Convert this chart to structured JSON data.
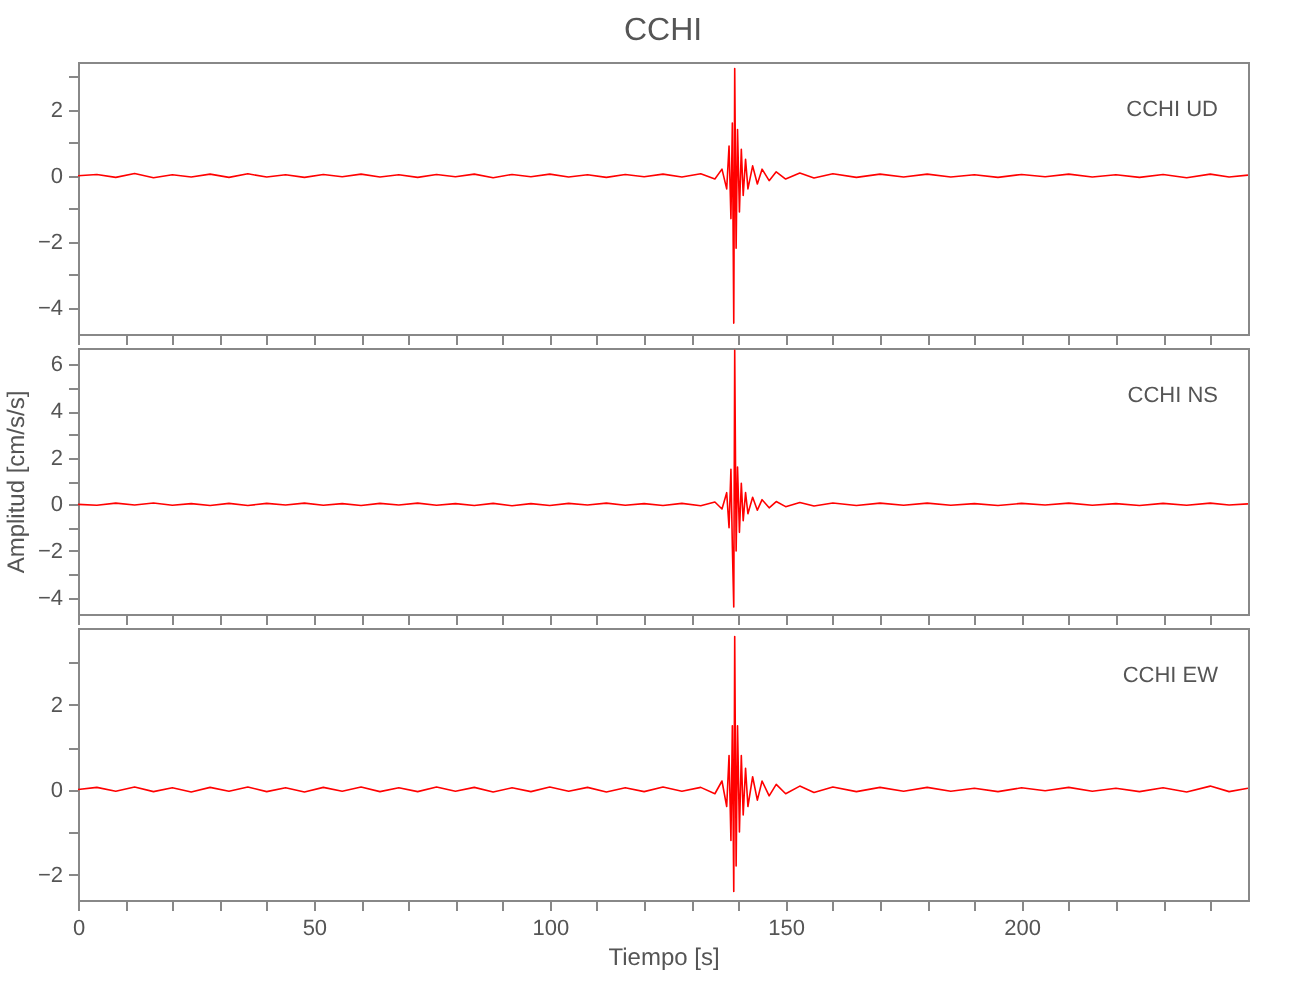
{
  "chart_data": [
    {
      "type": "line",
      "title": "CCHI",
      "annotations": [
        "CCHI   UD"
      ],
      "xlim": [
        0,
        248
      ],
      "ylim": [
        -4.8,
        3.45
      ],
      "tick_labels": "y",
      "grid": false,
      "xticks": [
        0,
        {
          "value": 10,
          "label": null
        },
        {
          "value": 20,
          "label": null
        },
        {
          "value": 30,
          "label": null
        },
        {
          "value": 40,
          "label": null
        },
        50,
        {
          "value": 60,
          "label": null
        },
        {
          "value": 70,
          "label": null
        },
        {
          "value": 80,
          "label": null
        },
        {
          "value": 90,
          "label": null
        },
        100,
        {
          "value": 110,
          "label": null
        },
        {
          "value": 120,
          "label": null
        },
        {
          "value": 130,
          "label": null
        },
        {
          "value": 140,
          "label": null
        },
        150,
        {
          "value": 160,
          "label": null
        },
        {
          "value": 170,
          "label": null
        },
        {
          "value": 180,
          "label": null
        },
        {
          "value": 190,
          "label": null
        },
        200,
        {
          "value": 210,
          "label": null
        },
        {
          "value": 220,
          "label": null
        },
        {
          "value": 230,
          "label": null
        },
        {
          "value": 240,
          "label": null
        }
      ],
      "yticks": [
        -4,
        {
          "value": -3,
          "label": null
        },
        -2,
        {
          "value": -1,
          "label": null
        },
        0,
        {
          "value": 1,
          "label": null
        },
        2,
        {
          "value": 3,
          "label": null
        }
      ],
      "x": [
        0,
        4,
        8,
        12,
        16,
        20,
        24,
        28,
        32,
        36,
        40,
        44,
        48,
        52,
        56,
        60,
        64,
        68,
        72,
        76,
        80,
        84,
        88,
        92,
        96,
        100,
        104,
        108,
        112,
        116,
        120,
        124,
        128,
        132,
        135,
        136.5,
        137.5,
        138,
        138.4,
        138.7,
        139,
        139.2,
        139.5,
        139.8,
        140.2,
        140.6,
        141,
        141.5,
        142,
        143,
        144,
        145,
        146.5,
        148,
        150,
        153,
        156,
        160,
        165,
        170,
        175,
        180,
        185,
        190,
        195,
        200,
        205,
        210,
        215,
        220,
        225,
        230,
        235,
        240,
        244,
        248
      ],
      "series": [
        {
          "color": "#ff0000",
          "values": [
            0,
            0.04,
            -0.05,
            0.07,
            -0.06,
            0.03,
            -0.04,
            0.05,
            -0.05,
            0.06,
            -0.04,
            0.03,
            -0.05,
            0.04,
            -0.03,
            0.05,
            -0.04,
            0.03,
            -0.05,
            0.04,
            -0.03,
            0.05,
            -0.06,
            0.04,
            -0.03,
            0.05,
            -0.04,
            0.03,
            -0.05,
            0.04,
            -0.03,
            0.05,
            -0.04,
            0.06,
            -0.1,
            0.2,
            -0.4,
            0.9,
            -1.3,
            1.6,
            -4.47,
            3.25,
            -2.2,
            1.4,
            -1.1,
            0.8,
            -0.6,
            0.5,
            -0.4,
            0.3,
            -0.25,
            0.2,
            -0.15,
            0.12,
            -0.1,
            0.08,
            -0.07,
            0.06,
            -0.05,
            0.05,
            -0.04,
            0.05,
            -0.04,
            0.03,
            -0.05,
            0.04,
            -0.03,
            0.05,
            -0.04,
            0.03,
            -0.05,
            0.04,
            -0.06,
            0.05,
            -0.04,
            0.02
          ]
        }
      ]
    },
    {
      "type": "line",
      "ylabel": "Amplitud  [cm/s/s]",
      "annotations": [
        "CCHI   NS"
      ],
      "xlim": [
        0,
        248
      ],
      "ylim": [
        -4.7,
        6.7
      ],
      "tick_labels": "y",
      "grid": false,
      "xticks": [
        0,
        {
          "value": 10,
          "label": null
        },
        {
          "value": 20,
          "label": null
        },
        {
          "value": 30,
          "label": null
        },
        {
          "value": 40,
          "label": null
        },
        50,
        {
          "value": 60,
          "label": null
        },
        {
          "value": 70,
          "label": null
        },
        {
          "value": 80,
          "label": null
        },
        {
          "value": 90,
          "label": null
        },
        100,
        {
          "value": 110,
          "label": null
        },
        {
          "value": 120,
          "label": null
        },
        {
          "value": 130,
          "label": null
        },
        {
          "value": 140,
          "label": null
        },
        150,
        {
          "value": 160,
          "label": null
        },
        {
          "value": 170,
          "label": null
        },
        {
          "value": 180,
          "label": null
        },
        {
          "value": 190,
          "label": null
        },
        200,
        {
          "value": 210,
          "label": null
        },
        {
          "value": 220,
          "label": null
        },
        {
          "value": 230,
          "label": null
        },
        {
          "value": 240,
          "label": null
        }
      ],
      "yticks": [
        -4,
        {
          "value": -3,
          "label": null
        },
        -2,
        {
          "value": -1,
          "label": null
        },
        0,
        {
          "value": 1,
          "label": null
        },
        2,
        {
          "value": 3,
          "label": null
        },
        4,
        {
          "value": 5,
          "label": null
        },
        6
      ],
      "x": [
        0,
        4,
        8,
        12,
        16,
        20,
        24,
        28,
        32,
        36,
        40,
        44,
        48,
        52,
        56,
        60,
        64,
        68,
        72,
        76,
        80,
        84,
        88,
        92,
        96,
        100,
        104,
        108,
        112,
        116,
        120,
        124,
        128,
        132,
        135,
        136.5,
        137.5,
        138,
        138.4,
        138.7,
        139,
        139.2,
        139.5,
        139.8,
        140.2,
        140.6,
        141,
        141.5,
        142,
        143,
        144,
        145,
        146.5,
        148,
        150,
        153,
        156,
        160,
        165,
        170,
        175,
        180,
        185,
        190,
        195,
        200,
        205,
        210,
        215,
        220,
        225,
        230,
        235,
        240,
        244,
        248
      ],
      "series": [
        {
          "color": "#ff0000",
          "values": [
            0,
            -0.04,
            0.05,
            -0.03,
            0.06,
            -0.04,
            0.03,
            -0.05,
            0.04,
            -0.05,
            0.04,
            -0.03,
            0.05,
            -0.04,
            0.03,
            -0.05,
            0.04,
            -0.03,
            0.05,
            -0.04,
            0.03,
            -0.05,
            0.04,
            -0.06,
            0.03,
            -0.05,
            0.04,
            -0.03,
            0.05,
            -0.04,
            0.03,
            -0.05,
            0.04,
            -0.06,
            0.1,
            -0.2,
            0.5,
            -1.0,
            1.5,
            -1.8,
            -4.4,
            6.6,
            -2.0,
            1.6,
            -1.2,
            0.9,
            -0.7,
            0.5,
            -0.4,
            0.3,
            -0.25,
            0.2,
            -0.15,
            0.12,
            -0.1,
            0.08,
            -0.07,
            0.06,
            -0.05,
            0.05,
            -0.04,
            0.05,
            -0.04,
            0.03,
            -0.05,
            0.04,
            -0.03,
            0.05,
            -0.04,
            0.03,
            -0.05,
            0.04,
            -0.04,
            0.05,
            -0.03,
            0.02
          ]
        }
      ]
    },
    {
      "type": "line",
      "xlabel": "Tiempo  [s]",
      "annotations": [
        "CCHI   EW"
      ],
      "xlim": [
        0,
        248
      ],
      "ylim": [
        -2.6,
        3.8
      ],
      "grid": false,
      "xticks": [
        0,
        {
          "value": 10,
          "label": null
        },
        {
          "value": 20,
          "label": null
        },
        {
          "value": 30,
          "label": null
        },
        {
          "value": 40,
          "label": null
        },
        50,
        {
          "value": 60,
          "label": null
        },
        {
          "value": 70,
          "label": null
        },
        {
          "value": 80,
          "label": null
        },
        {
          "value": 90,
          "label": null
        },
        100,
        {
          "value": 110,
          "label": null
        },
        {
          "value": 120,
          "label": null
        },
        {
          "value": 130,
          "label": null
        },
        {
          "value": 140,
          "label": null
        },
        150,
        {
          "value": 160,
          "label": null
        },
        {
          "value": 170,
          "label": null
        },
        {
          "value": 180,
          "label": null
        },
        {
          "value": 190,
          "label": null
        },
        200,
        {
          "value": 210,
          "label": null
        },
        {
          "value": 220,
          "label": null
        },
        {
          "value": 230,
          "label": null
        },
        {
          "value": 240,
          "label": null
        }
      ],
      "yticks": [
        {
          "value": -2,
          "label": "−2"
        },
        {
          "value": -1,
          "label": null
        },
        0,
        {
          "value": 1,
          "label": null
        },
        2,
        {
          "value": 3,
          "label": null
        }
      ],
      "x": [
        0,
        4,
        8,
        12,
        16,
        20,
        24,
        28,
        32,
        36,
        40,
        44,
        48,
        52,
        56,
        60,
        64,
        68,
        72,
        76,
        80,
        84,
        88,
        92,
        96,
        100,
        104,
        108,
        112,
        116,
        120,
        124,
        128,
        132,
        135,
        136.5,
        137.5,
        138,
        138.4,
        138.7,
        139,
        139.2,
        139.5,
        139.8,
        140.2,
        140.6,
        141,
        141.5,
        142,
        143,
        144,
        145,
        146.5,
        148,
        150,
        153,
        156,
        160,
        165,
        170,
        175,
        180,
        185,
        190,
        195,
        200,
        205,
        210,
        215,
        220,
        225,
        230,
        235,
        240,
        244,
        248
      ],
      "series": [
        {
          "color": "#ff0000",
          "values": [
            0,
            0.05,
            -0.04,
            0.06,
            -0.05,
            0.04,
            -0.06,
            0.05,
            -0.04,
            0.06,
            -0.05,
            0.04,
            -0.06,
            0.05,
            -0.04,
            0.06,
            -0.05,
            0.04,
            -0.05,
            0.06,
            -0.04,
            0.05,
            -0.06,
            0.04,
            -0.05,
            0.06,
            -0.04,
            0.05,
            -0.06,
            0.04,
            -0.05,
            0.06,
            -0.04,
            0.05,
            -0.1,
            0.2,
            -0.4,
            0.8,
            -1.2,
            1.5,
            -2.4,
            3.6,
            -1.8,
            1.5,
            -1.0,
            0.8,
            -0.6,
            0.5,
            -0.4,
            0.3,
            -0.25,
            0.2,
            -0.15,
            0.12,
            -0.1,
            0.08,
            -0.07,
            0.06,
            -0.05,
            0.05,
            -0.04,
            0.05,
            -0.04,
            0.03,
            -0.05,
            0.04,
            -0.03,
            0.05,
            -0.04,
            0.03,
            -0.05,
            0.04,
            -0.06,
            0.08,
            -0.05,
            0.03
          ]
        }
      ]
    }
  ]
}
